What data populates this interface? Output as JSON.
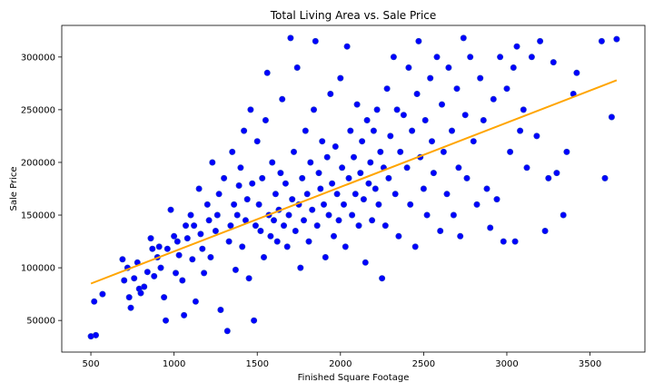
{
  "chart_data": {
    "type": "scatter",
    "title": "Total Living Area vs. Sale Price",
    "xlabel": "Finished Square Footage",
    "ylabel": "Sale Price",
    "xlim": [
      325,
      3830
    ],
    "ylim": [
      20000,
      330000
    ],
    "x_ticks": [
      500,
      1000,
      1500,
      2000,
      2500,
      3000,
      3500
    ],
    "y_ticks": [
      50000,
      100000,
      150000,
      200000,
      250000,
      300000
    ],
    "grid": false,
    "legend": "none",
    "series": [
      {
        "kind": "points",
        "color": "#0000ff",
        "edge_color": "#1f3fbf",
        "points": [
          [
            500,
            35000
          ],
          [
            530,
            36000
          ],
          [
            520,
            68000
          ],
          [
            570,
            75000
          ],
          [
            690,
            108000
          ],
          [
            700,
            88000
          ],
          [
            720,
            100000
          ],
          [
            730,
            72000
          ],
          [
            740,
            62000
          ],
          [
            760,
            90000
          ],
          [
            780,
            105000
          ],
          [
            790,
            80000
          ],
          [
            800,
            76000
          ],
          [
            820,
            82000
          ],
          [
            840,
            96000
          ],
          [
            860,
            128000
          ],
          [
            870,
            118000
          ],
          [
            880,
            92000
          ],
          [
            900,
            110000
          ],
          [
            910,
            120000
          ],
          [
            920,
            100000
          ],
          [
            940,
            72000
          ],
          [
            950,
            50000
          ],
          [
            960,
            118000
          ],
          [
            980,
            155000
          ],
          [
            1000,
            130000
          ],
          [
            1010,
            95000
          ],
          [
            1020,
            125000
          ],
          [
            1030,
            112000
          ],
          [
            1050,
            88000
          ],
          [
            1060,
            55000
          ],
          [
            1070,
            140000
          ],
          [
            1080,
            128000
          ],
          [
            1100,
            150000
          ],
          [
            1110,
            108000
          ],
          [
            1120,
            140000
          ],
          [
            1130,
            68000
          ],
          [
            1150,
            175000
          ],
          [
            1160,
            132000
          ],
          [
            1170,
            118000
          ],
          [
            1180,
            95000
          ],
          [
            1200,
            160000
          ],
          [
            1210,
            145000
          ],
          [
            1220,
            110000
          ],
          [
            1230,
            200000
          ],
          [
            1250,
            135000
          ],
          [
            1260,
            150000
          ],
          [
            1270,
            170000
          ],
          [
            1280,
            60000
          ],
          [
            1300,
            185000
          ],
          [
            1320,
            40000
          ],
          [
            1330,
            125000
          ],
          [
            1340,
            140000
          ],
          [
            1350,
            210000
          ],
          [
            1360,
            160000
          ],
          [
            1370,
            98000
          ],
          [
            1380,
            150000
          ],
          [
            1390,
            178000
          ],
          [
            1400,
            195000
          ],
          [
            1410,
            120000
          ],
          [
            1420,
            230000
          ],
          [
            1430,
            145000
          ],
          [
            1440,
            165000
          ],
          [
            1450,
            90000
          ],
          [
            1460,
            250000
          ],
          [
            1470,
            180000
          ],
          [
            1480,
            50000
          ],
          [
            1490,
            140000
          ],
          [
            1500,
            220000
          ],
          [
            1510,
            160000
          ],
          [
            1520,
            135000
          ],
          [
            1530,
            185000
          ],
          [
            1540,
            110000
          ],
          [
            1550,
            240000
          ],
          [
            1560,
            285000
          ],
          [
            1570,
            150000
          ],
          [
            1580,
            130000
          ],
          [
            1590,
            200000
          ],
          [
            1600,
            145000
          ],
          [
            1610,
            170000
          ],
          [
            1620,
            125000
          ],
          [
            1630,
            155000
          ],
          [
            1640,
            190000
          ],
          [
            1650,
            260000
          ],
          [
            1660,
            140000
          ],
          [
            1670,
            180000
          ],
          [
            1680,
            120000
          ],
          [
            1690,
            150000
          ],
          [
            1700,
            318000
          ],
          [
            1710,
            165000
          ],
          [
            1720,
            210000
          ],
          [
            1730,
            135000
          ],
          [
            1740,
            290000
          ],
          [
            1750,
            160000
          ],
          [
            1760,
            100000
          ],
          [
            1770,
            185000
          ],
          [
            1780,
            145000
          ],
          [
            1790,
            230000
          ],
          [
            1800,
            170000
          ],
          [
            1810,
            125000
          ],
          [
            1820,
            200000
          ],
          [
            1830,
            155000
          ],
          [
            1840,
            250000
          ],
          [
            1850,
            315000
          ],
          [
            1860,
            140000
          ],
          [
            1870,
            190000
          ],
          [
            1880,
            175000
          ],
          [
            1890,
            220000
          ],
          [
            1900,
            160000
          ],
          [
            1910,
            110000
          ],
          [
            1920,
            205000
          ],
          [
            1930,
            150000
          ],
          [
            1940,
            265000
          ],
          [
            1950,
            180000
          ],
          [
            1960,
            130000
          ],
          [
            1970,
            215000
          ],
          [
            1980,
            170000
          ],
          [
            1990,
            145000
          ],
          [
            2000,
            280000
          ],
          [
            2010,
            195000
          ],
          [
            2020,
            160000
          ],
          [
            2030,
            120000
          ],
          [
            2040,
            310000
          ],
          [
            2050,
            185000
          ],
          [
            2060,
            230000
          ],
          [
            2070,
            150000
          ],
          [
            2080,
            205000
          ],
          [
            2090,
            170000
          ],
          [
            2100,
            255000
          ],
          [
            2110,
            140000
          ],
          [
            2120,
            190000
          ],
          [
            2130,
            220000
          ],
          [
            2140,
            165000
          ],
          [
            2150,
            105000
          ],
          [
            2160,
            240000
          ],
          [
            2170,
            180000
          ],
          [
            2180,
            200000
          ],
          [
            2190,
            145000
          ],
          [
            2200,
            230000
          ],
          [
            2210,
            175000
          ],
          [
            2220,
            250000
          ],
          [
            2230,
            160000
          ],
          [
            2240,
            210000
          ],
          [
            2250,
            90000
          ],
          [
            2260,
            195000
          ],
          [
            2270,
            140000
          ],
          [
            2280,
            270000
          ],
          [
            2290,
            185000
          ],
          [
            2300,
            225000
          ],
          [
            2320,
            300000
          ],
          [
            2330,
            170000
          ],
          [
            2340,
            250000
          ],
          [
            2350,
            130000
          ],
          [
            2360,
            210000
          ],
          [
            2380,
            245000
          ],
          [
            2400,
            195000
          ],
          [
            2410,
            290000
          ],
          [
            2420,
            160000
          ],
          [
            2430,
            230000
          ],
          [
            2450,
            120000
          ],
          [
            2460,
            265000
          ],
          [
            2470,
            315000
          ],
          [
            2480,
            205000
          ],
          [
            2500,
            175000
          ],
          [
            2510,
            240000
          ],
          [
            2520,
            150000
          ],
          [
            2540,
            280000
          ],
          [
            2550,
            220000
          ],
          [
            2560,
            190000
          ],
          [
            2580,
            300000
          ],
          [
            2600,
            135000
          ],
          [
            2610,
            255000
          ],
          [
            2620,
            210000
          ],
          [
            2640,
            170000
          ],
          [
            2650,
            290000
          ],
          [
            2670,
            230000
          ],
          [
            2680,
            150000
          ],
          [
            2700,
            270000
          ],
          [
            2710,
            195000
          ],
          [
            2720,
            130000
          ],
          [
            2740,
            318000
          ],
          [
            2750,
            245000
          ],
          [
            2760,
            185000
          ],
          [
            2780,
            300000
          ],
          [
            2800,
            220000
          ],
          [
            2820,
            160000
          ],
          [
            2840,
            280000
          ],
          [
            2860,
            240000
          ],
          [
            2880,
            175000
          ],
          [
            2900,
            138000
          ],
          [
            2920,
            260000
          ],
          [
            2940,
            165000
          ],
          [
            2960,
            300000
          ],
          [
            2980,
            125000
          ],
          [
            3000,
            270000
          ],
          [
            3020,
            210000
          ],
          [
            3040,
            290000
          ],
          [
            3050,
            125000
          ],
          [
            3060,
            310000
          ],
          [
            3080,
            230000
          ],
          [
            3100,
            250000
          ],
          [
            3120,
            195000
          ],
          [
            3150,
            300000
          ],
          [
            3180,
            225000
          ],
          [
            3200,
            315000
          ],
          [
            3230,
            135000
          ],
          [
            3250,
            185000
          ],
          [
            3280,
            295000
          ],
          [
            3300,
            190000
          ],
          [
            3340,
            150000
          ],
          [
            3360,
            210000
          ],
          [
            3400,
            265000
          ],
          [
            3420,
            285000
          ],
          [
            3570,
            315000
          ],
          [
            3590,
            185000
          ],
          [
            3630,
            243000
          ],
          [
            3660,
            317000
          ]
        ]
      },
      {
        "kind": "line",
        "color": "#ffa500",
        "points": [
          [
            500,
            85000
          ],
          [
            3660,
            278000
          ]
        ]
      }
    ]
  }
}
